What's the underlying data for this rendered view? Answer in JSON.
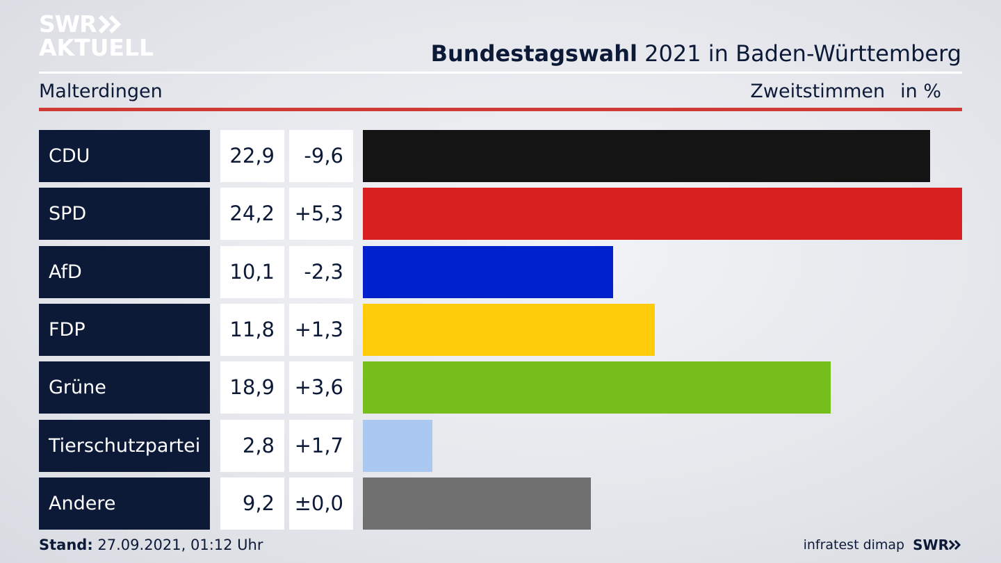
{
  "logo": {
    "line1": "SWR",
    "line2": "AKTUELL"
  },
  "header": {
    "title_bold": "Bundestagswahl",
    "title_rest": " 2021 in Baden-Württemberg"
  },
  "subheader": {
    "region": "Malterdingen",
    "measure": "Zweitstimmen",
    "unit": "in %"
  },
  "chart_data": {
    "type": "bar",
    "orientation": "horizontal",
    "categories": [
      "CDU",
      "SPD",
      "AfD",
      "FDP",
      "Grüne",
      "Tierschutzpartei",
      "Andere"
    ],
    "values": [
      22.9,
      24.2,
      10.1,
      11.8,
      18.9,
      2.8,
      9.2
    ],
    "value_labels": [
      "22,9",
      "24,2",
      "10,1",
      "11,8",
      "18,9",
      "2,8",
      "9,2"
    ],
    "change_labels": [
      "-9,6",
      "+5,3",
      "-2,3",
      "+1,3",
      "+3,6",
      "+1,7",
      "±0,0"
    ],
    "colors": [
      "#141414",
      "#d82020",
      "#0022cc",
      "#fecc0a",
      "#76be1c",
      "#aac8f0",
      "#707070"
    ],
    "ylim": [
      0,
      24.2
    ],
    "grid": false
  },
  "footer": {
    "stand_label": "Stand:",
    "stand_value": " 27.09.2021, 01:12 Uhr",
    "source": "infratest dimap",
    "brand": "SWR"
  }
}
